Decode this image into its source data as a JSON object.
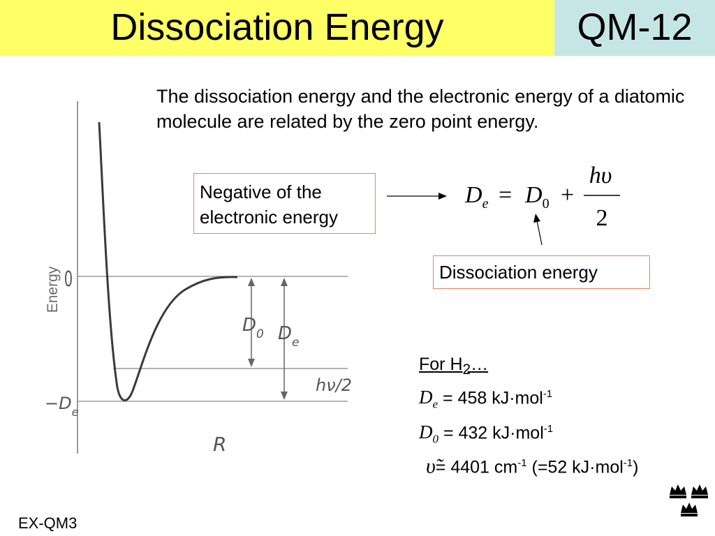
{
  "header": {
    "title": "Dissociation Energy",
    "slide_id": "QM-12"
  },
  "intro_text": "The dissociation energy and the electronic energy of a diatomic molecule are related by the zero point energy.",
  "callouts": {
    "electronic": "Negative of the electronic energy",
    "dissociation": "Dissociation energy"
  },
  "equation": {
    "lhs": "D",
    "lhs_sub": "e",
    "equals": "=",
    "rhs": "D",
    "rhs_sub": "0",
    "plus": "+",
    "numerator": "hυ",
    "denominator": "2"
  },
  "diagram": {
    "axis_label": "Energy",
    "x_label": "R",
    "zero_label": "0",
    "minus_de_label": "−D",
    "minus_de_sub": "e",
    "d0_label": "D",
    "d0_sub": "0",
    "de_label": "D",
    "de_sub": "e",
    "hv2_label": "hν/2",
    "colors": {
      "curve": "#444444",
      "lines": "#9a9a9a",
      "text": "#555555"
    }
  },
  "h2_data": {
    "heading": "For H",
    "heading_sub": "2",
    "heading_suffix": "…",
    "de_symbol": "D",
    "de_sub": "e",
    "de_value": " = 458 kJ·mol",
    "de_exp": "-1",
    "d0_symbol": "D",
    "d0_sub": "0",
    "d0_value": " = 432 kJ·mol",
    "d0_exp": "-1",
    "nu_symbol": "υ̃",
    "nu_value": "= 4401 cm",
    "nu_exp": "-1",
    "nu_paren": " (=52 kJ·mol",
    "nu_paren_exp": "-1",
    "nu_close": ")"
  },
  "footer": {
    "slide_code": "EX-QM3"
  },
  "logo": {
    "name": "three-crowns-logo",
    "color": "#000000"
  }
}
